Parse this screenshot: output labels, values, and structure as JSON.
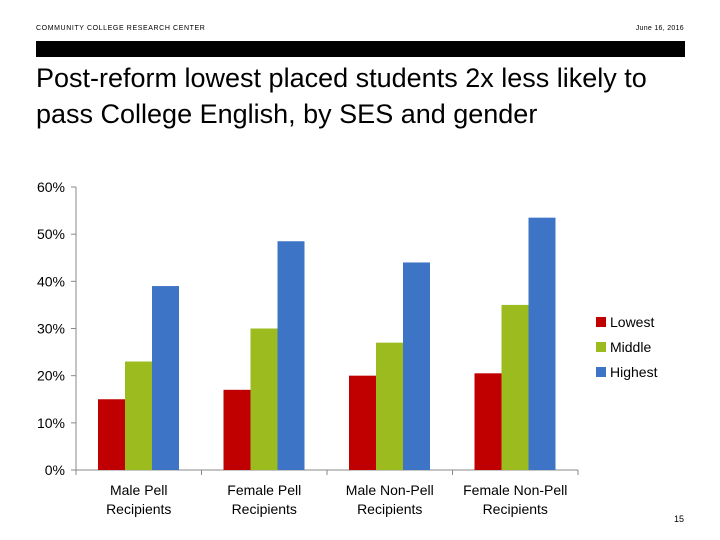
{
  "header": {
    "org": "COMMUNITY COLLEGE RESEARCH CENTER",
    "date": "June 16, 2016"
  },
  "slide": {
    "title": "Post-reform lowest placed students 2x less likely to pass College English, by SES and gender",
    "number": "15"
  },
  "chart_data": {
    "type": "bar",
    "categories": [
      "Male Pell Recipients",
      "Female Pell Recipients",
      "Male Non-Pell Recipients",
      "Female Non-Pell Recipients"
    ],
    "series": [
      {
        "name": "Lowest",
        "values": [
          15,
          17,
          20,
          20.5
        ],
        "color": "#c00000"
      },
      {
        "name": "Middle",
        "values": [
          23,
          30,
          27,
          35
        ],
        "color": "#9bbb1f"
      },
      {
        "name": "Highest",
        "values": [
          39,
          48.5,
          44,
          53.5
        ],
        "color": "#3d74c6"
      }
    ],
    "y_ticks": [
      0,
      10,
      20,
      30,
      40,
      50,
      60
    ],
    "y_tick_labels": [
      "0%",
      "10%",
      "20%",
      "30%",
      "40%",
      "50%",
      "60%"
    ],
    "ylim": [
      0,
      60
    ],
    "grid": false,
    "legend_position": "right"
  }
}
